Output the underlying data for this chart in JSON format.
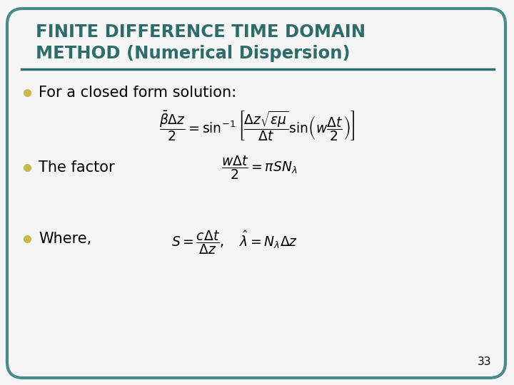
{
  "title_line1": "FINITE DIFFERENCE TIME DOMAIN",
  "title_line2": "METHOD (Numerical Dispersion)",
  "title_color": "#2E6B6B",
  "background_color": "#F5F5F5",
  "border_color": "#4A8A8A",
  "bullet_color": "#C8B84A",
  "bullet1": "For a closed form solution:",
  "bullet2": "The factor",
  "bullet3": "Where,",
  "page_number": "33",
  "text_color": "#000000",
  "line_color": "#2E6B6B"
}
